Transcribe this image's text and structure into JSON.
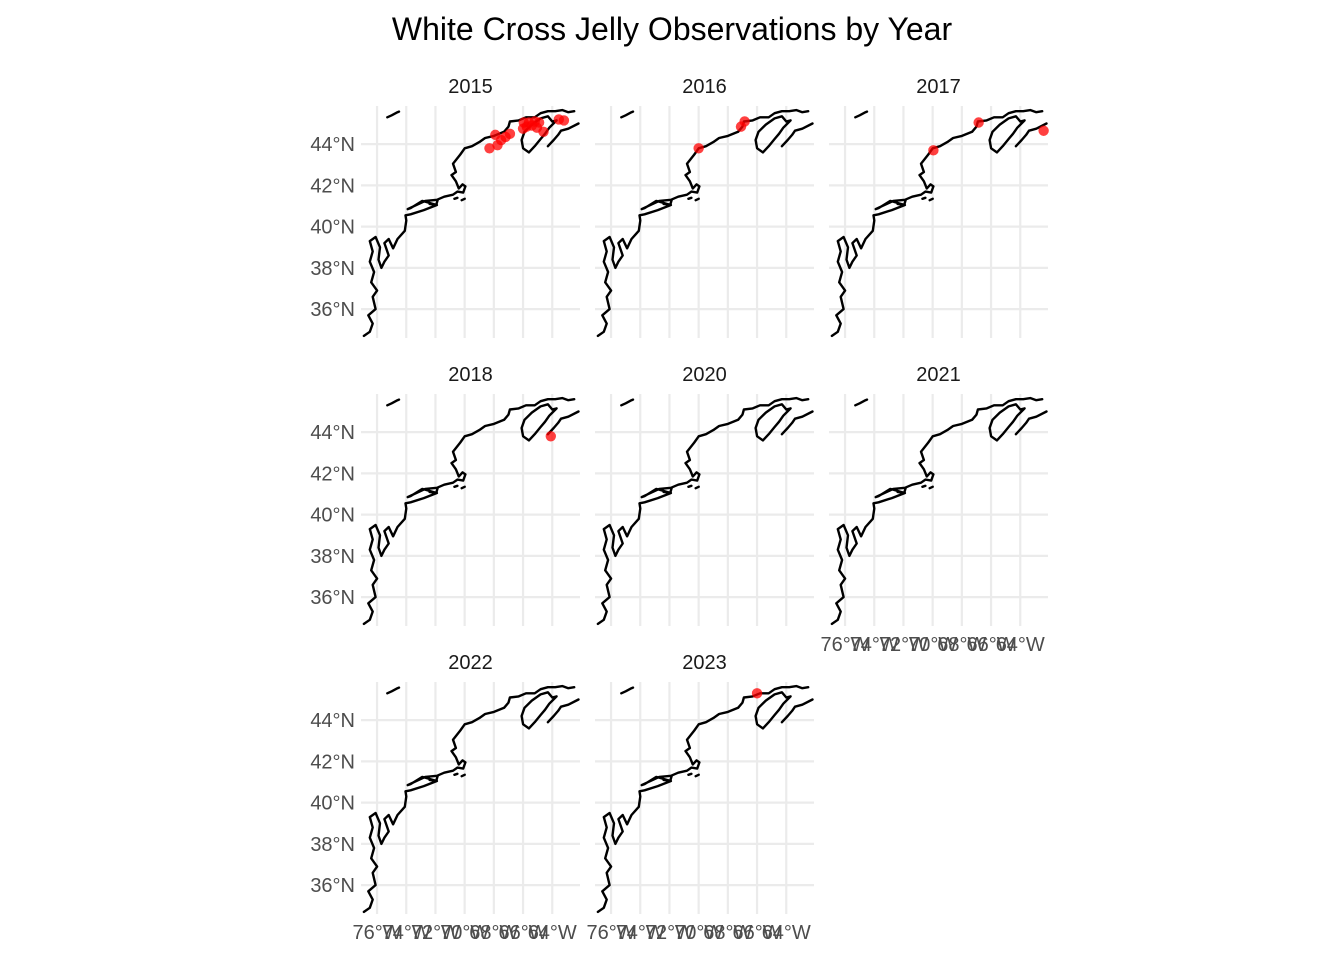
{
  "chart_data": {
    "type": "scatter",
    "title": "White Cross Jelly Observations by Year",
    "xlabel": "",
    "ylabel": "",
    "xlim": [
      -77.1,
      -62.1
    ],
    "ylim": [
      34.6,
      45.85
    ],
    "x_ticks": [
      -76,
      -74,
      -72,
      -70,
      -68,
      -66,
      -64
    ],
    "x_tick_labels": [
      "76°W",
      "74°W",
      "72°W",
      "70°W",
      "68°W",
      "66°W",
      "64°W"
    ],
    "y_ticks": [
      36,
      38,
      40,
      42,
      44
    ],
    "y_tick_labels": [
      "36°N",
      "38°N",
      "40°N",
      "42°N",
      "44°N"
    ],
    "grid": true,
    "legend": "none",
    "point_color": "#ff0000",
    "facets": [
      {
        "label": "2015",
        "points": [
          [
            -68.3,
            43.8
          ],
          [
            -67.9,
            44.45
          ],
          [
            -67.75,
            43.95
          ],
          [
            -67.5,
            44.2
          ],
          [
            -67.2,
            44.35
          ],
          [
            -66.9,
            44.5
          ],
          [
            -66.0,
            44.75
          ],
          [
            -65.95,
            45.05
          ],
          [
            -65.75,
            44.85
          ],
          [
            -65.6,
            45.05
          ],
          [
            -65.4,
            44.9
          ],
          [
            -65.2,
            45.1
          ],
          [
            -65.05,
            44.8
          ],
          [
            -64.9,
            45.05
          ],
          [
            -64.6,
            44.6
          ],
          [
            -63.55,
            45.2
          ],
          [
            -63.2,
            45.15
          ]
        ]
      },
      {
        "label": "2016",
        "points": [
          [
            -70.0,
            43.8
          ],
          [
            -67.1,
            44.85
          ],
          [
            -66.85,
            45.1
          ]
        ]
      },
      {
        "label": "2017",
        "points": [
          [
            -69.95,
            43.7
          ],
          [
            -66.85,
            45.05
          ],
          [
            -62.4,
            44.65
          ]
        ]
      },
      {
        "label": "2018",
        "points": [
          [
            -64.1,
            43.8
          ]
        ]
      },
      {
        "label": "2020",
        "points": []
      },
      {
        "label": "2021",
        "points": []
      },
      {
        "label": "2022",
        "points": []
      },
      {
        "label": "2023",
        "points": [
          [
            -66.0,
            45.3
          ]
        ]
      }
    ]
  }
}
